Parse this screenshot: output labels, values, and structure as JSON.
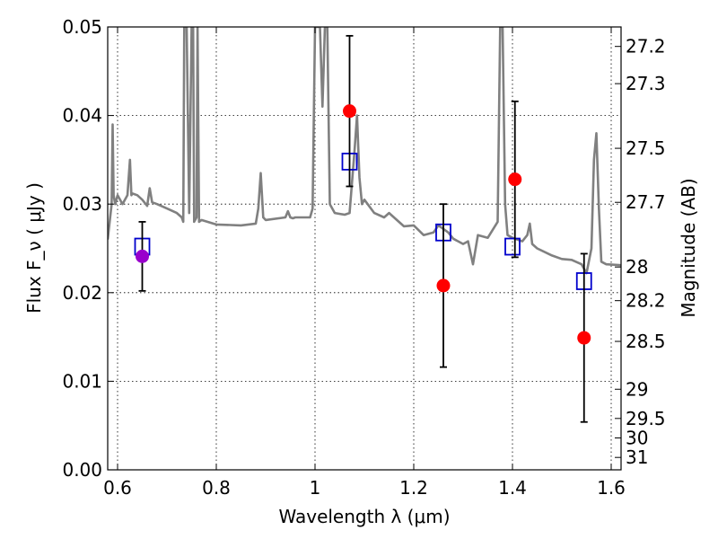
{
  "chart_data": {
    "type": "scatter",
    "xlabel": "Wavelength  λ (μm)",
    "ylabel": "Flux  F_ν ( μJy )",
    "y2label": "Magnitude (AB)",
    "xlim": [
      0.58,
      1.62
    ],
    "ylim": [
      0.0,
      0.05
    ],
    "grid": true,
    "xticks": [
      {
        "value": 0.6,
        "label": "0.6"
      },
      {
        "value": 0.8,
        "label": "0.8"
      },
      {
        "value": 1.0,
        "label": "1"
      },
      {
        "value": 1.2,
        "label": "1.2"
      },
      {
        "value": 1.4,
        "label": "1.4"
      },
      {
        "value": 1.6,
        "label": "1.6"
      }
    ],
    "yticks": [
      {
        "value": 0.0,
        "label": "0.00"
      },
      {
        "value": 0.01,
        "label": "0.01"
      },
      {
        "value": 0.02,
        "label": "0.02"
      },
      {
        "value": 0.03,
        "label": "0.03"
      },
      {
        "value": 0.04,
        "label": "0.04"
      },
      {
        "value": 0.05,
        "label": "0.05"
      }
    ],
    "y2ticks": [
      {
        "flux": 0.0478,
        "label": "27.2"
      },
      {
        "flux": 0.0436,
        "label": "27.3"
      },
      {
        "flux": 0.0363,
        "label": "27.5"
      },
      {
        "flux": 0.0302,
        "label": "27.7"
      },
      {
        "flux": 0.0229,
        "label": "28"
      },
      {
        "flux": 0.0191,
        "label": "28.2"
      },
      {
        "flux": 0.0145,
        "label": "28.5"
      },
      {
        "flux": 0.0091,
        "label": "29"
      },
      {
        "flux": 0.0058,
        "label": "29.5"
      },
      {
        "flux": 0.0036,
        "label": "30"
      },
      {
        "flux": 0.0014,
        "label": "31"
      }
    ],
    "series": [
      {
        "kind": "model_spectrum",
        "color": "#808080",
        "x": [
          0.58,
          0.588,
          0.59,
          0.592,
          0.595,
          0.6,
          0.61,
          0.62,
          0.625,
          0.628,
          0.63,
          0.64,
          0.65,
          0.66,
          0.665,
          0.67,
          0.68,
          0.7,
          0.72,
          0.73,
          0.733,
          0.735,
          0.74,
          0.745,
          0.75,
          0.753,
          0.755,
          0.76,
          0.762,
          0.765,
          0.77,
          0.8,
          0.85,
          0.88,
          0.885,
          0.89,
          0.895,
          0.9,
          0.94,
          0.945,
          0.95,
          0.955,
          0.96,
          0.99,
          0.995,
          1.0,
          1.01,
          1.015,
          1.02,
          1.025,
          1.03,
          1.04,
          1.06,
          1.07,
          1.08,
          1.085,
          1.09,
          1.095,
          1.1,
          1.12,
          1.14,
          1.15,
          1.18,
          1.2,
          1.22,
          1.24,
          1.25,
          1.27,
          1.28,
          1.3,
          1.31,
          1.32,
          1.33,
          1.35,
          1.37,
          1.375,
          1.38,
          1.385,
          1.39,
          1.4,
          1.42,
          1.43,
          1.435,
          1.44,
          1.45,
          1.48,
          1.5,
          1.52,
          1.54,
          1.55,
          1.56,
          1.565,
          1.57,
          1.575,
          1.58,
          1.59,
          1.62
        ],
        "y": [
          0.026,
          0.03,
          0.039,
          0.031,
          0.03,
          0.031,
          0.03,
          0.031,
          0.035,
          0.031,
          0.0312,
          0.031,
          0.0305,
          0.0298,
          0.0318,
          0.0302,
          0.03,
          0.0295,
          0.029,
          0.0285,
          0.028,
          0.05,
          0.05,
          0.029,
          0.05,
          0.05,
          0.028,
          0.0285,
          0.05,
          0.028,
          0.0282,
          0.0277,
          0.0276,
          0.0278,
          0.0295,
          0.0335,
          0.0285,
          0.0282,
          0.0285,
          0.0292,
          0.0285,
          0.0284,
          0.0285,
          0.0285,
          0.0295,
          0.05,
          0.05,
          0.041,
          0.05,
          0.05,
          0.03,
          0.029,
          0.0288,
          0.029,
          0.036,
          0.04,
          0.033,
          0.03,
          0.0305,
          0.029,
          0.0285,
          0.029,
          0.0275,
          0.0276,
          0.0265,
          0.0268,
          0.0276,
          0.0268,
          0.0261,
          0.0255,
          0.0258,
          0.0232,
          0.0265,
          0.0262,
          0.028,
          0.05,
          0.05,
          0.03,
          0.0265,
          0.0262,
          0.0258,
          0.0265,
          0.0278,
          0.0255,
          0.025,
          0.0242,
          0.0238,
          0.0237,
          0.0232,
          0.0222,
          0.025,
          0.035,
          0.038,
          0.0295,
          0.0235,
          0.0232,
          0.0231
        ]
      },
      {
        "kind": "model_photometry",
        "marker": "open-square",
        "color": "#0000cc",
        "points": [
          {
            "x": 0.65,
            "y": 0.0252
          },
          {
            "x": 1.07,
            "y": 0.0348
          },
          {
            "x": 1.26,
            "y": 0.0268
          },
          {
            "x": 1.4,
            "y": 0.0252
          },
          {
            "x": 1.545,
            "y": 0.0213
          }
        ]
      },
      {
        "kind": "observed",
        "marker": "filled-circle",
        "points": [
          {
            "x": 0.65,
            "y": 0.0241,
            "err_lo": 0.0039,
            "err_hi": 0.0039,
            "color": "#9900cc"
          },
          {
            "x": 1.07,
            "y": 0.0405,
            "err_lo": 0.0085,
            "err_hi": 0.0085,
            "color": "#ff0000"
          },
          {
            "x": 1.26,
            "y": 0.0208,
            "err_lo": 0.0092,
            "err_hi": 0.0092,
            "color": "#ff0000"
          },
          {
            "x": 1.405,
            "y": 0.0328,
            "err_lo": 0.0088,
            "err_hi": 0.0088,
            "color": "#ff0000"
          },
          {
            "x": 1.545,
            "y": 0.0149,
            "err_lo": 0.0095,
            "err_hi": 0.0095,
            "color": "#ff0000"
          }
        ]
      }
    ]
  }
}
